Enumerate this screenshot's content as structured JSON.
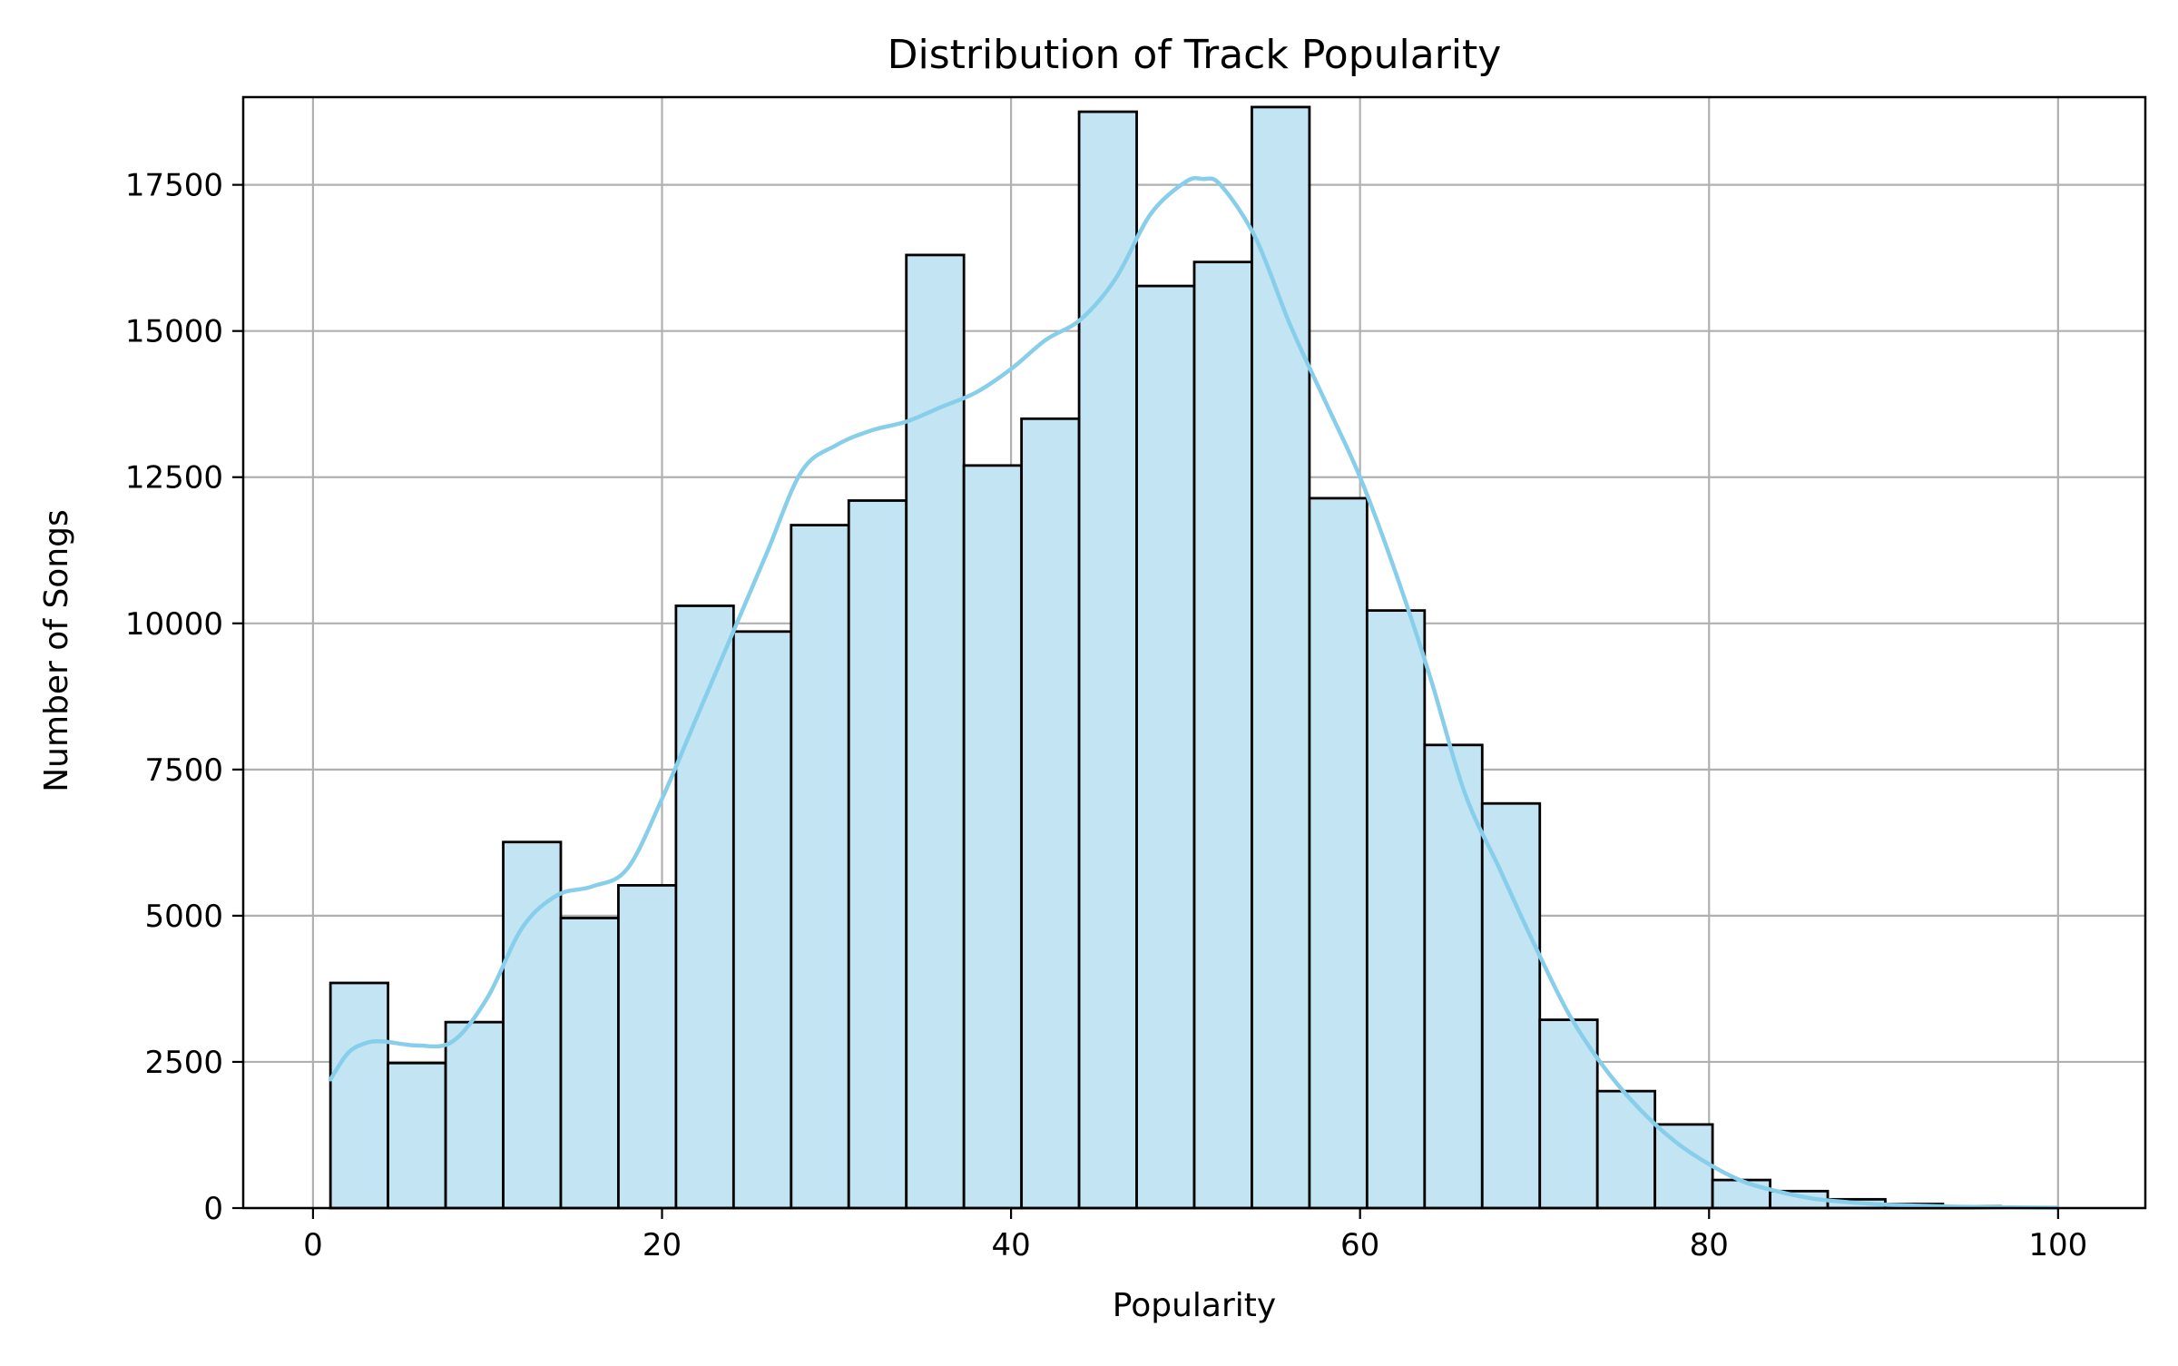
{
  "chart_data": {
    "type": "bar",
    "subtype": "histogram",
    "title": "Distribution of Track Popularity",
    "xlabel": "Popularity",
    "ylabel": "Number of Songs",
    "xlim": [
      -4,
      105
    ],
    "ylim": [
      0,
      19000
    ],
    "x_ticks": [
      0,
      20,
      40,
      60,
      80,
      100
    ],
    "y_ticks": [
      0,
      2500,
      5000,
      7500,
      10000,
      12500,
      15000,
      17500
    ],
    "grid": true,
    "bins": {
      "edges": [
        1.0,
        4.3,
        7.6,
        10.9,
        14.2,
        17.5,
        20.8,
        24.1,
        27.4,
        30.7,
        34.0,
        37.3,
        40.6,
        43.9,
        47.2,
        50.5,
        53.8,
        57.1,
        60.4,
        63.7,
        67.0,
        70.3,
        73.6,
        76.9,
        80.2,
        83.5,
        86.8,
        90.1,
        93.4,
        96.7,
        100.0
      ],
      "counts": [
        3850,
        2480,
        3180,
        6260,
        4960,
        5520,
        10300,
        9860,
        11680,
        12100,
        16300,
        12700,
        13500,
        18750,
        15770,
        16180,
        18830,
        12140,
        10220,
        7920,
        6920,
        3220,
        2000,
        1430,
        480,
        290,
        150,
        70,
        30,
        10
      ]
    },
    "kde": {
      "x": [
        1,
        2,
        3,
        4,
        6,
        8,
        10,
        12,
        14,
        16,
        18,
        20,
        22,
        24,
        26,
        28,
        30,
        32,
        34,
        36,
        38,
        40,
        42,
        44,
        46,
        48,
        50,
        51,
        52,
        54,
        56,
        58,
        60,
        62,
        64,
        66,
        68,
        70,
        72,
        74,
        76,
        78,
        80,
        82,
        84,
        86,
        88,
        90,
        92,
        94,
        96,
        98,
        100
      ],
      "y": [
        2200,
        2650,
        2820,
        2850,
        2780,
        2850,
        3600,
        4800,
        5350,
        5500,
        5800,
        7000,
        8400,
        9800,
        11200,
        12600,
        13050,
        13300,
        13450,
        13700,
        13950,
        14350,
        14850,
        15200,
        15900,
        17000,
        17550,
        17600,
        17500,
        16600,
        15100,
        13800,
        12500,
        10900,
        9100,
        7100,
        5800,
        4500,
        3300,
        2400,
        1700,
        1150,
        750,
        450,
        280,
        160,
        100,
        60,
        40,
        25,
        15,
        10,
        5
      ]
    },
    "colors": {
      "bar_fill": "#c2e4f3",
      "bar_edge": "#000000",
      "kde_line": "#87ceeb",
      "grid": "#b0b0b0",
      "axes": "#000000"
    }
  }
}
